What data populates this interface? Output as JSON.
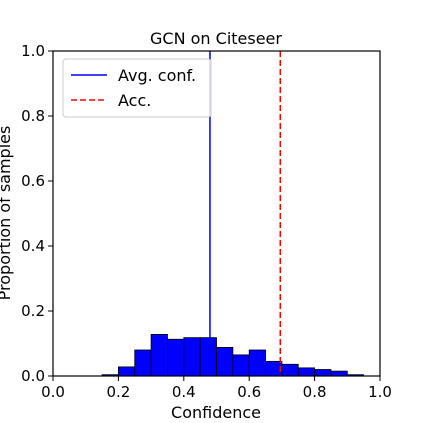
{
  "chart_data": {
    "type": "bar",
    "title": "GCN on Citeseer",
    "xlabel": "Confidence",
    "ylabel": "Proportion of samples",
    "xlim": [
      0.0,
      1.0
    ],
    "ylim": [
      0.0,
      1.0
    ],
    "xticks": [
      "0.0",
      "0.2",
      "0.4",
      "0.6",
      "0.8",
      "1.0"
    ],
    "yticks": [
      "0.0",
      "0.2",
      "0.4",
      "0.6",
      "0.8",
      "1.0"
    ],
    "bin_width": 0.05,
    "bins": [
      {
        "x": 0.15,
        "value": 0.004
      },
      {
        "x": 0.2,
        "value": 0.028
      },
      {
        "x": 0.25,
        "value": 0.08
      },
      {
        "x": 0.3,
        "value": 0.128
      },
      {
        "x": 0.35,
        "value": 0.113
      },
      {
        "x": 0.4,
        "value": 0.118
      },
      {
        "x": 0.45,
        "value": 0.118
      },
      {
        "x": 0.5,
        "value": 0.088
      },
      {
        "x": 0.55,
        "value": 0.065
      },
      {
        "x": 0.6,
        "value": 0.08
      },
      {
        "x": 0.65,
        "value": 0.045
      },
      {
        "x": 0.7,
        "value": 0.036
      },
      {
        "x": 0.75,
        "value": 0.025
      },
      {
        "x": 0.8,
        "value": 0.02
      },
      {
        "x": 0.85,
        "value": 0.015
      },
      {
        "x": 0.9,
        "value": 0.004
      }
    ],
    "bar_color": "#0000ff",
    "edge_color": "#000000",
    "avg_conf": 0.48,
    "accuracy": 0.695,
    "avg_conf_color": "#0000ff",
    "acc_color": "#ff0000",
    "legend": {
      "position": "top-left",
      "entries": [
        {
          "label": "Avg. conf.",
          "style": "solid",
          "color": "#0000ff"
        },
        {
          "label": "Acc.",
          "style": "dashed",
          "color": "#ff0000"
        }
      ]
    },
    "grid": false
  }
}
